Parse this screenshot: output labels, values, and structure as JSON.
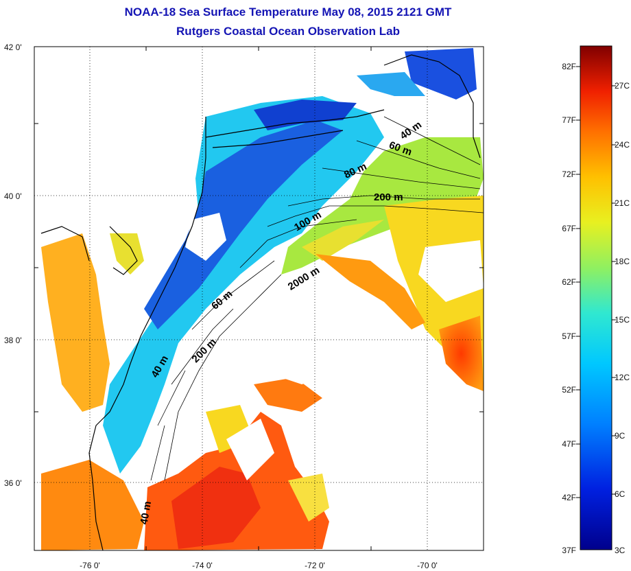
{
  "title": "NOAA-18 Sea Surface Temperature May 08, 2015 2121 GMT",
  "subtitle": "Rutgers Coastal Ocean Observation Lab",
  "lat_ticks": [
    "42 0'",
    "40 0'",
    "38 0'",
    "36 0'"
  ],
  "lon_ticks": [
    "-76 0'",
    "-74 0'",
    "-72 0'",
    "-70 0'"
  ],
  "depth_labels": [
    "40 m",
    "60 m",
    "80 m",
    "100 m",
    "200 m",
    "2000 m",
    "60 m",
    "200 m",
    "40 m",
    "40 m"
  ],
  "colorbar": {
    "fahrenheit": [
      "82F",
      "77F",
      "72F",
      "67F",
      "62F",
      "57F",
      "52F",
      "47F",
      "42F",
      "37F"
    ],
    "celsius": [
      "27C",
      "24C",
      "21C",
      "18C",
      "15C",
      "12C",
      "9C",
      "6C",
      "3C"
    ]
  },
  "colors": {
    "title": "#1414b4",
    "land": "#ffffff",
    "cold": "#00008c",
    "warm": "#800000"
  }
}
